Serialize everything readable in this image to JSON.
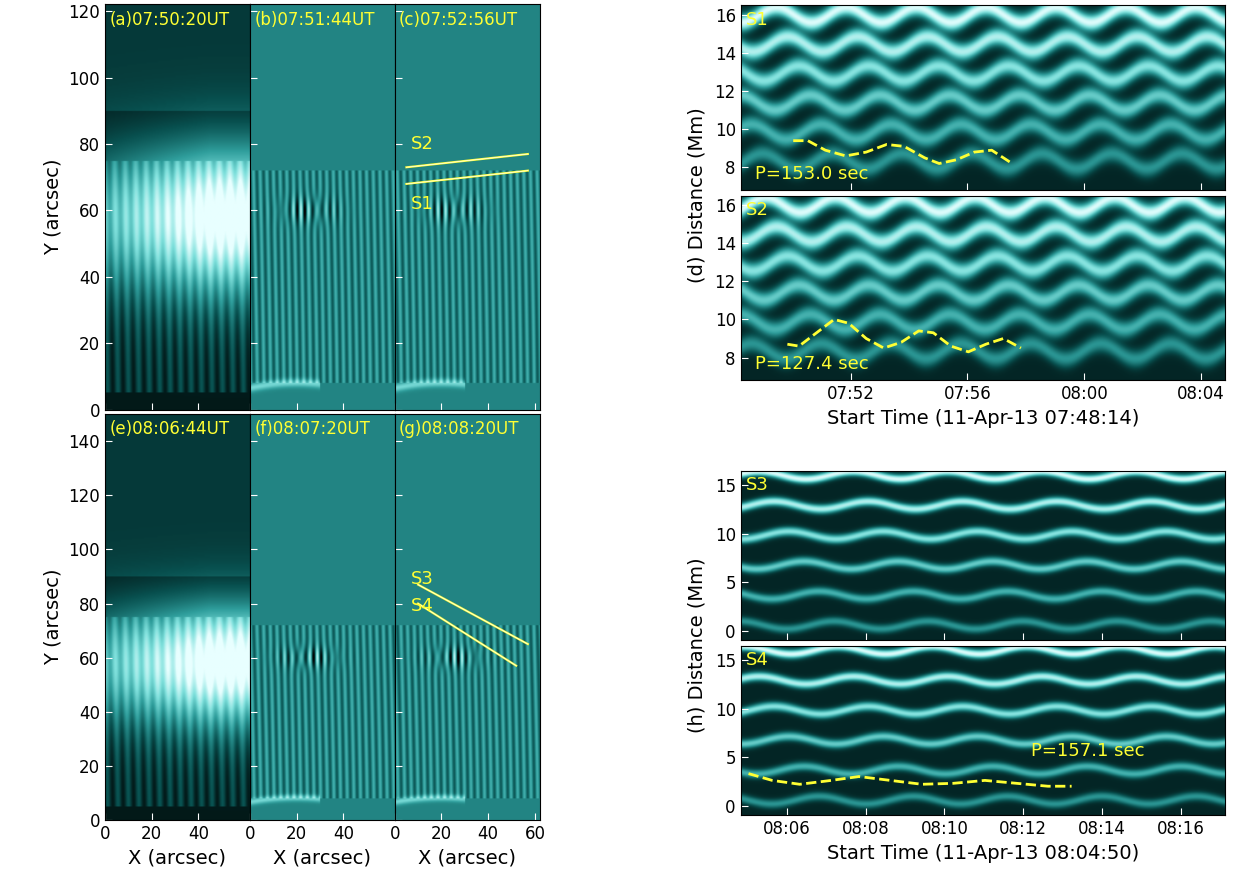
{
  "chart_data": [
    {
      "type": "image",
      "label": "(a)07:50:20UT",
      "xlim": [
        0,
        62
      ],
      "ylim": [
        0,
        122
      ],
      "xticks": [
        0,
        20,
        40
      ],
      "yticks": [
        0,
        20,
        40,
        60,
        80,
        100,
        120
      ],
      "ylabel": "Y (arcsec)",
      "tick_labels": "y"
    },
    {
      "type": "difference",
      "label": "(b)07:51:44UT",
      "xlim": [
        0,
        62
      ],
      "ylim": [
        0,
        122
      ],
      "xticks": [
        0,
        20,
        40
      ],
      "yticks": [
        0,
        20,
        40,
        60,
        80,
        100,
        120
      ],
      "tick_labels": false
    },
    {
      "type": "difference",
      "label": "(c)07:52:56UT",
      "xlim": [
        0,
        62
      ],
      "ylim": [
        0,
        122
      ],
      "xticks": [
        0,
        20,
        40,
        60
      ],
      "yticks": [
        0,
        20,
        40,
        60,
        80,
        100,
        120
      ],
      "tick_labels": false,
      "slits": [
        {
          "name": "S2",
          "start": [
            5,
            73
          ],
          "end": [
            57,
            77
          ],
          "label_at": [
            7,
            80
          ]
        },
        {
          "name": "S1",
          "start": [
            5,
            68
          ],
          "end": [
            57,
            72
          ],
          "label_at": [
            7,
            62
          ]
        }
      ],
      "color": "#ffff33"
    },
    {
      "type": "image",
      "label": "(e)08:06:44UT",
      "xlim": [
        0,
        62
      ],
      "ylim": [
        0,
        150
      ],
      "xticks": [
        0,
        20,
        40
      ],
      "yticks": [
        0,
        20,
        40,
        60,
        80,
        100,
        120,
        140
      ],
      "ylabel": "Y (arcsec)",
      "xlabel": "X (arcsec)"
    },
    {
      "type": "difference",
      "label": "(f)08:07:20UT",
      "xlim": [
        0,
        62
      ],
      "ylim": [
        0,
        150
      ],
      "xticks": [
        0,
        20,
        40
      ],
      "yticks": [
        0,
        20,
        40,
        60,
        80,
        100,
        120,
        140
      ],
      "xlabel": "X (arcsec)",
      "tick_labels": "x"
    },
    {
      "type": "difference",
      "label": "(g)08:08:20UT",
      "xlim": [
        0,
        62
      ],
      "ylim": [
        0,
        150
      ],
      "xticks": [
        0,
        20,
        40,
        60
      ],
      "yticks": [
        0,
        20,
        40,
        60,
        80,
        100,
        120,
        140
      ],
      "xlabel": "X (arcsec)",
      "tick_labels": "x",
      "slits": [
        {
          "name": "S3",
          "start": [
            10,
            87
          ],
          "end": [
            57,
            65
          ],
          "label_at": [
            7,
            89
          ]
        },
        {
          "name": "S4",
          "start": [
            10,
            80
          ],
          "end": [
            52,
            57
          ],
          "label_at": [
            7,
            79
          ]
        }
      ],
      "color": "#ffff33"
    },
    {
      "type": "map",
      "label": "S1",
      "xlim": [
        0,
        16.6
      ],
      "ylim": [
        6.8,
        16.5
      ],
      "yticks": [
        8,
        10,
        12,
        14,
        16
      ],
      "xticks": [
        {
          "value": 3.77,
          "label": "07:52"
        },
        {
          "value": 7.77,
          "label": "07:56"
        },
        {
          "value": 11.77,
          "label": "08:00"
        },
        {
          "value": 15.77,
          "label": "08:04"
        }
      ],
      "tick_labels": "y",
      "fit": {
        "x": [
          1.8,
          2.3,
          2.9,
          3.6,
          4.3,
          5.0,
          5.6,
          6.3,
          6.8,
          7.4,
          8.0,
          8.6,
          9.3
        ],
        "y": [
          9.4,
          9.4,
          8.9,
          8.6,
          8.8,
          9.2,
          9.1,
          8.5,
          8.2,
          8.4,
          8.8,
          8.9,
          8.2
        ],
        "label": "P=153.0 sec",
        "line_style": "dashed",
        "color": "#ffff33"
      }
    },
    {
      "type": "map",
      "label": "S2",
      "xlim": [
        0,
        16.6
      ],
      "ylim": [
        6.8,
        16.5
      ],
      "yticks": [
        8,
        10,
        12,
        14,
        16
      ],
      "xticks": [
        {
          "value": 3.77,
          "label": "07:52"
        },
        {
          "value": 7.77,
          "label": "07:56"
        },
        {
          "value": 11.77,
          "label": "08:00"
        },
        {
          "value": 15.77,
          "label": "08:04"
        }
      ],
      "ylabel": "(d) Distance (Mm)",
      "xlabel": "Start Time (11-Apr-13 07:48:14)",
      "fit": {
        "x": [
          1.6,
          2.0,
          2.6,
          3.2,
          3.7,
          4.3,
          4.9,
          5.5,
          6.1,
          6.6,
          7.2,
          7.8,
          8.4,
          9.0,
          9.6
        ],
        "y": [
          8.7,
          8.6,
          9.3,
          10.0,
          9.8,
          9.0,
          8.5,
          8.8,
          9.4,
          9.3,
          8.6,
          8.3,
          8.7,
          9.0,
          8.5
        ],
        "label": "P=127.4 sec",
        "line_style": "dashed",
        "color": "#ffff33"
      }
    },
    {
      "type": "map",
      "label": "S3",
      "xlim": [
        0,
        12.3
      ],
      "ylim": [
        -1,
        16.5
      ],
      "yticks": [
        0,
        5,
        10,
        15
      ],
      "xticks": [
        {
          "value": 1.17,
          "label": "08:06"
        },
        {
          "value": 3.17,
          "label": "08:08"
        },
        {
          "value": 5.17,
          "label": "08:10"
        },
        {
          "value": 7.17,
          "label": "08:12"
        },
        {
          "value": 9.17,
          "label": "08:14"
        },
        {
          "value": 11.17,
          "label": "08:16"
        }
      ],
      "tick_labels": "y"
    },
    {
      "type": "map",
      "label": "S4",
      "xlim": [
        0,
        12.3
      ],
      "ylim": [
        -1,
        16.5
      ],
      "yticks": [
        0,
        5,
        10,
        15
      ],
      "xticks": [
        {
          "value": 1.17,
          "label": "08:06"
        },
        {
          "value": 3.17,
          "label": "08:08"
        },
        {
          "value": 5.17,
          "label": "08:10"
        },
        {
          "value": 7.17,
          "label": "08:12"
        },
        {
          "value": 9.17,
          "label": "08:14"
        },
        {
          "value": 11.17,
          "label": "08:16"
        }
      ],
      "ylabel": "(h) Distance (Mm)",
      "xlabel": "Start Time (11-Apr-13 08:04:50)",
      "fit": {
        "x": [
          0.2,
          0.8,
          1.5,
          2.3,
          3.0,
          3.8,
          4.6,
          5.4,
          6.2,
          7.0,
          7.8,
          8.4
        ],
        "y": [
          3.3,
          2.6,
          2.2,
          2.6,
          3.0,
          2.6,
          2.2,
          2.3,
          2.6,
          2.3,
          2.0,
          2.0
        ],
        "label": "P=157.1 sec",
        "line_style": "dashed",
        "color": "#ffff33"
      }
    }
  ]
}
